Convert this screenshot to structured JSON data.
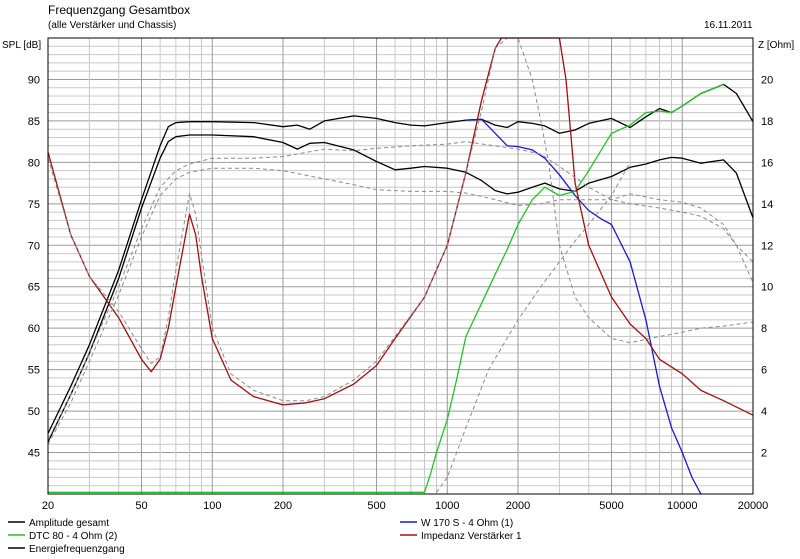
{
  "window": {
    "title": "Frequenzgang Gesamtbox",
    "subtitle": "(alle Verstärker und Chassis)",
    "date": "16.11.2011"
  },
  "chart_data": {
    "type": "line",
    "title": "Frequenzgang Gesamtbox",
    "subtitle": "(alle Verstärker und Chassis)",
    "date": "16.11.2011",
    "x_scale": "log",
    "xlim": [
      20,
      20000
    ],
    "ylabel_left": "SPL [dB]",
    "ylim_left": [
      40,
      95
    ],
    "ylabel_right": "Z [Ohm]",
    "ylim_right": [
      0,
      22
    ],
    "x_ticks": [
      {
        "value": 20,
        "label": "20"
      },
      {
        "value": 50,
        "label": "50"
      },
      {
        "value": 100,
        "label": "100"
      },
      {
        "value": 200,
        "label": "200"
      },
      {
        "value": 500,
        "label": "500"
      },
      {
        "value": 1000,
        "label": "1000"
      },
      {
        "value": 2000,
        "label": "2000"
      },
      {
        "value": 5000,
        "label": "5000"
      },
      {
        "value": 10000,
        "label": "10000"
      },
      {
        "value": 20000,
        "label": "20000"
      }
    ],
    "y_ticks_left": [
      45,
      50,
      55,
      60,
      65,
      70,
      75,
      80,
      85,
      90
    ],
    "y_ticks_right": [
      2,
      4,
      6,
      8,
      10,
      12,
      14,
      16,
      18,
      20
    ],
    "grid": true,
    "legend_position": "bottom",
    "series": [
      {
        "name": "Amplitude gesamt",
        "color": "#000000",
        "axis": "left",
        "style": "solid",
        "x": [
          20,
          25,
          30,
          40,
          50,
          60,
          65,
          70,
          80,
          100,
          150,
          200,
          230,
          260,
          300,
          400,
          500,
          600,
          700,
          800,
          1000,
          1200,
          1400,
          1600,
          1800,
          2000,
          2300,
          2600,
          3000,
          3500,
          4000,
          5000,
          6000,
          7000,
          8000,
          9000,
          10000,
          12000,
          15000,
          17000,
          20000
        ],
        "y": [
          47.3,
          53,
          58,
          67,
          75.5,
          82,
          84.3,
          84.8,
          84.9,
          84.9,
          84.8,
          84.3,
          84.5,
          84,
          85,
          85.6,
          85.3,
          84.8,
          84.5,
          84.4,
          84.8,
          85.1,
          85.2,
          84.5,
          84.2,
          84.9,
          84.7,
          84.4,
          83.5,
          83.9,
          84.7,
          85.3,
          84.2,
          85.5,
          86.5,
          86,
          86.8,
          88.3,
          89.4,
          88.3,
          84.9
        ]
      },
      {
        "name": "Energiefrequenzgang",
        "color": "#000000",
        "axis": "left",
        "style": "solid",
        "x": [
          20,
          25,
          30,
          40,
          50,
          60,
          65,
          70,
          80,
          100,
          150,
          200,
          230,
          260,
          300,
          400,
          500,
          600,
          700,
          800,
          1000,
          1200,
          1400,
          1600,
          1800,
          2000,
          2300,
          2600,
          3000,
          3500,
          4000,
          5000,
          6000,
          7000,
          8000,
          9000,
          10000,
          12000,
          15000,
          17000,
          20000
        ],
        "y": [
          46.3,
          52,
          57,
          66,
          74.5,
          80.5,
          82.5,
          83.1,
          83.3,
          83.3,
          83.1,
          82.4,
          81.6,
          82.3,
          82.4,
          81.5,
          80.1,
          79.1,
          79.3,
          79.5,
          79.3,
          78.8,
          77.8,
          76.6,
          76.2,
          76.4,
          77,
          77.5,
          76.8,
          76.5,
          77.5,
          78.3,
          79.4,
          79.8,
          80.3,
          80.6,
          80.5,
          79.9,
          80.3,
          78.7,
          73.3
        ]
      },
      {
        "name": "W 170 S - 4 Ohm (1)",
        "color": "#1a1acc",
        "axis": "left",
        "style": "solid",
        "x": [
          1200,
          1400,
          1600,
          1800,
          2000,
          2300,
          2600,
          3000,
          3500,
          4000,
          4500,
          5000,
          6000,
          7000,
          8000,
          9000,
          10000,
          11000,
          12000
        ],
        "y": [
          85.1,
          85.2,
          83.5,
          82,
          81.9,
          81.5,
          80.5,
          78.5,
          76,
          74.2,
          73.2,
          72.5,
          68,
          61,
          53,
          48,
          45,
          42,
          40
        ]
      },
      {
        "name": "DTC 80 - 4 Ohm (2)",
        "color": "#21c421",
        "axis": "left",
        "style": "solid",
        "x": [
          20,
          200,
          500,
          800,
          850,
          900,
          1000,
          1100,
          1200,
          1400,
          1600,
          1800,
          2000,
          2300,
          2600,
          3000,
          3500,
          4000,
          5000,
          6000,
          7000,
          8000,
          9000,
          10000,
          12000,
          15000
        ],
        "y": [
          40.2,
          40.2,
          40.2,
          40.2,
          42.5,
          45,
          49,
          54,
          59,
          63,
          66.5,
          69.5,
          72.5,
          75.5,
          77,
          76,
          76.5,
          79,
          83.5,
          84.5,
          86,
          86.2,
          86,
          86.8,
          88.3,
          89.4
        ]
      },
      {
        "name": "Impedanz Verstärker 1",
        "color": "#a01010",
        "axis": "right",
        "style": "solid",
        "x": [
          20,
          25,
          30,
          40,
          50,
          55,
          60,
          65,
          70,
          80,
          85,
          90,
          100,
          120,
          150,
          200,
          250,
          300,
          400,
          500,
          600,
          800,
          1000,
          1200,
          1400,
          1600,
          1700,
          1800,
          2000,
          2500,
          3000,
          3200,
          3500,
          4000,
          5000,
          6000,
          7000,
          8000,
          10000,
          12000,
          15000,
          20000
        ],
        "y": [
          16.5,
          12.5,
          10.5,
          8.5,
          6.5,
          5.9,
          6.5,
          8,
          10,
          13.5,
          12.5,
          10.5,
          7.5,
          5.5,
          4.7,
          4.3,
          4.4,
          4.6,
          5.3,
          6.2,
          7.5,
          9.5,
          12,
          15.5,
          19,
          21.5,
          22,
          22,
          22,
          22,
          22,
          20,
          15,
          12,
          9.5,
          8.2,
          7.5,
          6.5,
          5.8,
          5,
          4.5,
          3.8
        ]
      },
      {
        "name": "",
        "color": "#8a8a8a",
        "axis": "left",
        "style": "dashed",
        "x": [
          20,
          25,
          30,
          40,
          50,
          60,
          70,
          80,
          100,
          150,
          200,
          300,
          400,
          500,
          700,
          1000,
          1200,
          1500,
          2000,
          2500,
          3000,
          4000,
          5000,
          6000,
          8000,
          10000,
          12000,
          15000,
          17000,
          20000
        ],
        "y": [
          46.5,
          52,
          57,
          65,
          72,
          77,
          79,
          79.8,
          80.5,
          80.5,
          80.7,
          81.6,
          81.4,
          81.7,
          82,
          82.2,
          82.5,
          82.1,
          81.6,
          81,
          79.5,
          77,
          75.5,
          75,
          74.5,
          74,
          73.5,
          72,
          70,
          68
        ]
      },
      {
        "name": "",
        "color": "#8a8a8a",
        "axis": "left",
        "style": "dashed",
        "x": [
          20,
          25,
          30,
          40,
          50,
          60,
          70,
          80,
          100,
          150,
          200,
          300,
          400,
          500,
          700,
          1000,
          1200,
          1500,
          2000,
          2500,
          3000,
          4000,
          5000,
          6000,
          8000,
          10000,
          12000,
          15000,
          17000,
          20000
        ],
        "y": [
          46,
          51,
          56,
          64,
          71,
          76,
          78,
          78.8,
          79.3,
          79.3,
          79,
          78,
          77.3,
          76.7,
          76.5,
          76.5,
          76.3,
          75.7,
          74.8,
          75,
          75.5,
          75.5,
          75.5,
          76.2,
          75.5,
          75.2,
          74.5,
          72.5,
          70,
          65.5
        ]
      },
      {
        "name": "",
        "color": "#8a8a8a",
        "axis": "left",
        "style": "dashed",
        "x": [
          900,
          1000,
          1200,
          1500,
          2000,
          2500,
          3000,
          3500,
          4000,
          5000,
          6000
        ],
        "y": [
          40.2,
          42,
          48,
          55,
          61,
          65,
          68,
          70.5,
          72.5,
          76,
          80
        ]
      },
      {
        "name": "",
        "color": "#8a8a8a",
        "axis": "right",
        "style": "dashed",
        "x": [
          20,
          25,
          30,
          40,
          50,
          55,
          60,
          65,
          70,
          80,
          85,
          90,
          100,
          120,
          150,
          200,
          250,
          300,
          400,
          500,
          600,
          800,
          1000,
          1200,
          1400,
          1600,
          1800,
          2000,
          2300,
          2500,
          2700,
          3000,
          3500,
          4000,
          5000,
          6000,
          8000,
          10000,
          12000,
          15000,
          20000
        ],
        "y": [
          16.2,
          12.5,
          10.5,
          8.8,
          7,
          6.3,
          6.6,
          8.5,
          10.8,
          14.5,
          13.5,
          11.5,
          8,
          5.8,
          5,
          4.5,
          4.5,
          4.7,
          5.5,
          6.4,
          7.6,
          9.5,
          12,
          15.5,
          18.5,
          21.5,
          22,
          22,
          20,
          18,
          16,
          12,
          9.5,
          8.5,
          7.5,
          7.3,
          7.6,
          7.8,
          8,
          8.1,
          8.3
        ]
      }
    ],
    "legend": [
      {
        "label": "Amplitude gesamt",
        "color": "#000000",
        "column": "left"
      },
      {
        "label": "DTC 80 - 4 Ohm (2)",
        "color": "#21c421",
        "column": "left"
      },
      {
        "label": "Energiefrequenzgang",
        "color": "#000000",
        "column": "left"
      },
      {
        "label": "W 170 S - 4 Ohm (1)",
        "color": "#1a1acc",
        "column": "right"
      },
      {
        "label": "Impedanz Verstärker 1",
        "color": "#a01010",
        "column": "right"
      }
    ]
  }
}
